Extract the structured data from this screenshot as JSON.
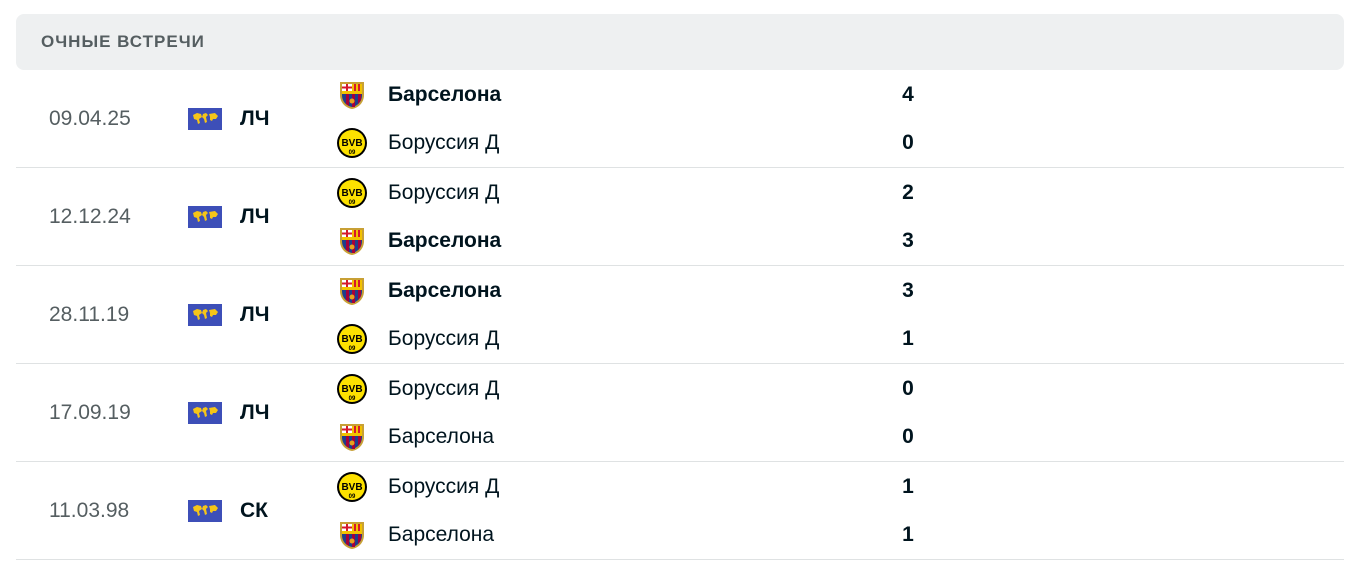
{
  "section_title": "ОЧНЫЕ ВСТРЕЧИ",
  "colors": {
    "flag_bg": "#3d4fb8",
    "flag_land": "#f5c518",
    "bvb_yellow": "#fde100"
  },
  "matches": [
    {
      "date": "09.04.25",
      "competition": "ЛЧ",
      "home": {
        "name": "Барселона",
        "logo": "barcelona-crest",
        "score": "4",
        "winner": true
      },
      "away": {
        "name": "Боруссия Д",
        "logo": "bvb-crest",
        "score": "0",
        "winner": false
      }
    },
    {
      "date": "12.12.24",
      "competition": "ЛЧ",
      "home": {
        "name": "Боруссия Д",
        "logo": "bvb-crest",
        "score": "2",
        "winner": false
      },
      "away": {
        "name": "Барселона",
        "logo": "barcelona-crest",
        "score": "3",
        "winner": true
      }
    },
    {
      "date": "28.11.19",
      "competition": "ЛЧ",
      "home": {
        "name": "Барселона",
        "logo": "barcelona-crest",
        "score": "3",
        "winner": true
      },
      "away": {
        "name": "Боруссия Д",
        "logo": "bvb-crest",
        "score": "1",
        "winner": false
      }
    },
    {
      "date": "17.09.19",
      "competition": "ЛЧ",
      "home": {
        "name": "Боруссия Д",
        "logo": "bvb-crest",
        "score": "0",
        "winner": false
      },
      "away": {
        "name": "Барселона",
        "logo": "barcelona-crest",
        "score": "0",
        "winner": false
      }
    },
    {
      "date": "11.03.98",
      "competition": "СК",
      "home": {
        "name": "Боруссия Д",
        "logo": "bvb-crest",
        "score": "1",
        "winner": false
      },
      "away": {
        "name": "Барселона",
        "logo": "barcelona-crest",
        "score": "1",
        "winner": false
      }
    }
  ]
}
